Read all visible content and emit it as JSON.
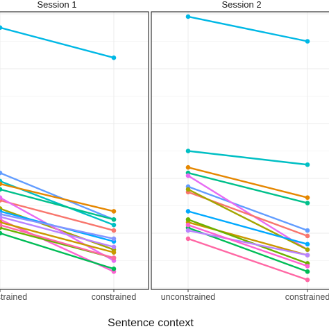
{
  "chart_data": {
    "type": "line",
    "xlabel": "Sentence context",
    "categories": [
      "unconstrained",
      "constrained"
    ],
    "ylim": [
      0,
      100
    ],
    "grid": true,
    "facets": [
      {
        "title": "Session 1",
        "series": [
          {
            "color": "#00B8E5",
            "values": [
              95,
              84
            ]
          },
          {
            "color": "#619CFF",
            "values": [
              42,
              25
            ]
          },
          {
            "color": "#00BFC4",
            "values": [
              39,
              23
            ]
          },
          {
            "color": "#00C08B",
            "values": [
              36,
              25
            ]
          },
          {
            "color": "#E58700",
            "values": [
              38,
              28
            ]
          },
          {
            "color": "#A3A500",
            "values": [
              29,
              14
            ]
          },
          {
            "color": "#F8766D",
            "values": [
              32,
              21
            ]
          },
          {
            "color": "#E76BF3",
            "values": [
              33,
              10
            ]
          },
          {
            "color": "#FD61D1",
            "values": [
              25,
              6
            ]
          },
          {
            "color": "#00A9FF",
            "values": [
              28,
              17
            ]
          },
          {
            "color": "#C99800",
            "values": [
              24,
              13
            ]
          },
          {
            "color": "#6BB100",
            "values": [
              22,
              11
            ]
          },
          {
            "color": "#00BC56",
            "values": [
              20,
              7
            ]
          },
          {
            "color": "#B983FF",
            "values": [
              26,
              15
            ]
          },
          {
            "color": "#FF67A4",
            "values": [
              23,
              11
            ]
          },
          {
            "color": "#8494FF",
            "values": [
              27,
              18
            ]
          }
        ]
      },
      {
        "title": "Session 2",
        "series": [
          {
            "color": "#00B8E5",
            "values": [
              99,
              90
            ]
          },
          {
            "color": "#00BFC4",
            "values": [
              50,
              45
            ]
          },
          {
            "color": "#E58700",
            "values": [
              44,
              33
            ]
          },
          {
            "color": "#00C08B",
            "values": [
              42,
              31
            ]
          },
          {
            "color": "#619CFF",
            "values": [
              37,
              21
            ]
          },
          {
            "color": "#E76BF3",
            "values": [
              41,
              14
            ]
          },
          {
            "color": "#F8766D",
            "values": [
              35,
              19
            ]
          },
          {
            "color": "#A3A500",
            "values": [
              36,
              14
            ]
          },
          {
            "color": "#00A9FF",
            "values": [
              28,
              16
            ]
          },
          {
            "color": "#C99800",
            "values": [
              24,
              12
            ]
          },
          {
            "color": "#6BB100",
            "values": [
              25,
              9
            ]
          },
          {
            "color": "#00BC56",
            "values": [
              22,
              6
            ]
          },
          {
            "color": "#B983FF",
            "values": [
              21,
              12
            ]
          },
          {
            "color": "#FD61D1",
            "values": [
              23,
              8
            ]
          },
          {
            "color": "#FF67A4",
            "values": [
              18,
              3
            ]
          }
        ]
      }
    ]
  }
}
